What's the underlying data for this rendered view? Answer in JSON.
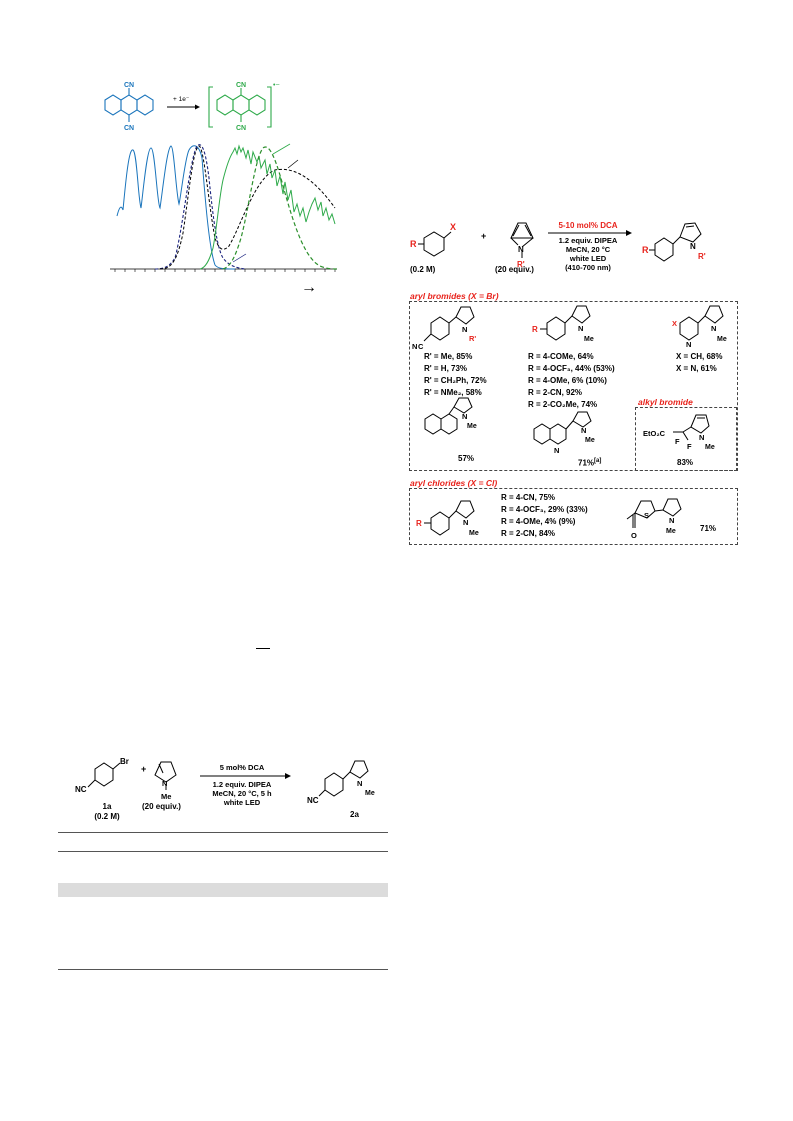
{
  "colors": {
    "dca_blue": "#1b75bc",
    "radical_green": "#2eaa4a",
    "label_red": "#e8231c",
    "dark_green": "#2c8f2c"
  },
  "figure_top": {
    "cn_label": "CN",
    "arrow_label": "+ 1e⁻",
    "radical_sign": "•−"
  },
  "scheme_main": {
    "sm_label": "(0.2 M)",
    "pyrrole_label": "(20 equiv.)",
    "r_label": "R",
    "x_label": "X",
    "n_label": "N",
    "rprime_label": "R'",
    "cond_red": "5-10 mol% DCA",
    "cond_1": "1.2 equiv. DIPEA",
    "cond_2": "MeCN, 20 °C",
    "cond_3": "white LED",
    "cond_4": "(410-700 nm)"
  },
  "aryl_bromides": {
    "header": "aryl bromides (X = Br)",
    "col1": [
      "R' = Me, 85%",
      "R' = H, 73%",
      "R' = CH₂Ph, 72%",
      "R' = NMe₂, 58%"
    ],
    "col2": [
      "R = 4-COMe, 64%",
      "R = 4-OCF₃, 44% (53%)",
      "R = 4-OMe, 6% (10%)",
      "R = 2-CN, 92%",
      "R = 2-CO₂Me, 74%"
    ],
    "col3": [
      "X = CH, 68%",
      "X = N, 61%"
    ],
    "naphthyl_yield": "57%",
    "quinoline_yield": "71%",
    "quinoline_note": "[a]"
  },
  "alkyl_bromide": {
    "header": "alkyl bromide",
    "ester": "EtO₂C",
    "f_label": "F",
    "yield": "83%"
  },
  "aryl_chlorides": {
    "header": "aryl chlorides (X = Cl)",
    "list": [
      "R = 4-CN, 75%",
      "R = 4-OCF₃, 29% (33%)",
      "R = 4-OMe, 4% (9%)",
      "R = 2-CN, 84%"
    ],
    "thiophene_yield": "71%",
    "s_label": "S",
    "o_label": "O"
  },
  "scheme_bottom": {
    "br": "Br",
    "nc": "NC",
    "me": "Me",
    "sm_id": "1a",
    "sm_conc": "(0.2 M)",
    "pyrrole_equiv": "(20 equiv.)",
    "cond_1": "5 mol% DCA",
    "cond_2": "1.2 equiv. DIPEA",
    "cond_3": "MeCN, 20 °C, 5 h",
    "cond_4": "white LED",
    "prod_id": "2a"
  },
  "spectrum": {
    "xaxis_arrow": "→"
  }
}
